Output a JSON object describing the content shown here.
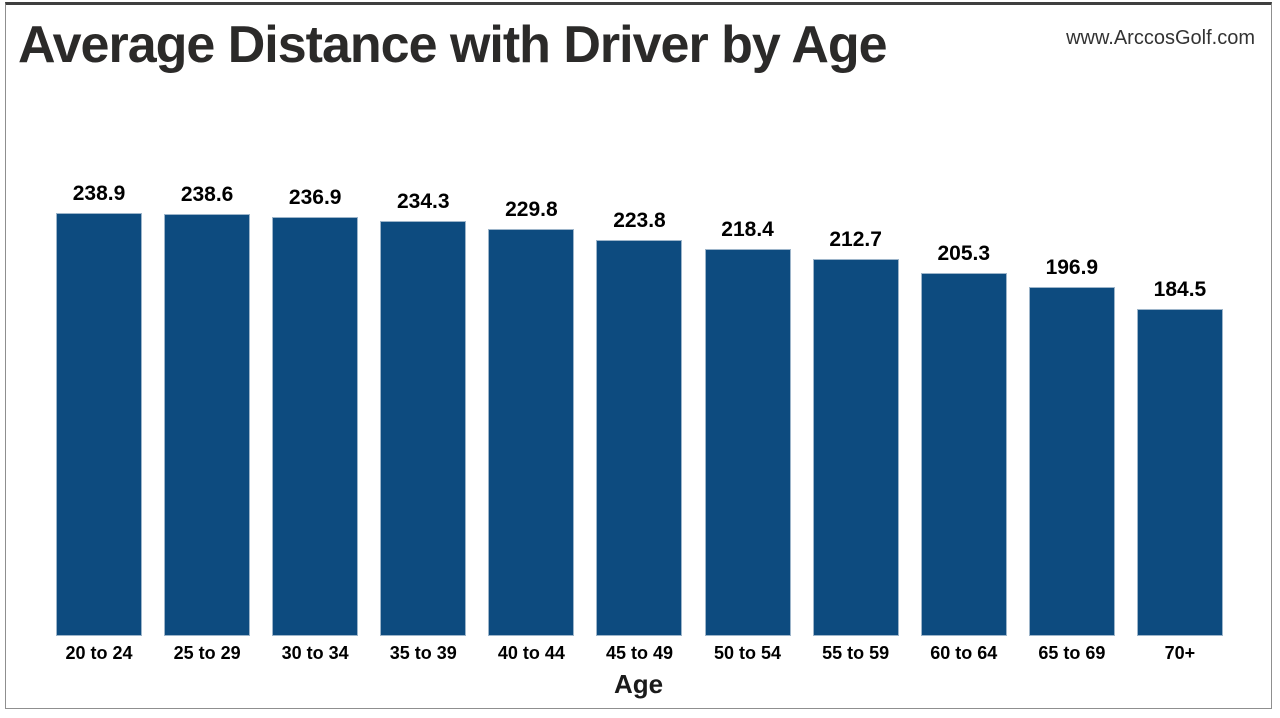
{
  "header": {
    "title": "Average Distance with Driver by Age",
    "watermark": "www.ArccosGolf.com"
  },
  "chart_data": {
    "type": "bar",
    "title": "Average Distance with Driver by Age",
    "categories": [
      "20 to 24",
      "25 to 29",
      "30 to 34",
      "35 to 39",
      "40 to 44",
      "45 to 49",
      "50 to 54",
      "55 to 59",
      "60 to 64",
      "65 to 69",
      "70+"
    ],
    "values": [
      238.9,
      238.6,
      236.9,
      234.3,
      229.8,
      223.8,
      218.4,
      212.7,
      205.3,
      196.9,
      184.5
    ],
    "xlabel": "Age",
    "ylabel": "",
    "ylim": [
      0,
      250
    ],
    "bar_color": "#0d4b7f",
    "data_labels": true,
    "data_label_decimals": 1,
    "grid": false,
    "legend": false
  }
}
